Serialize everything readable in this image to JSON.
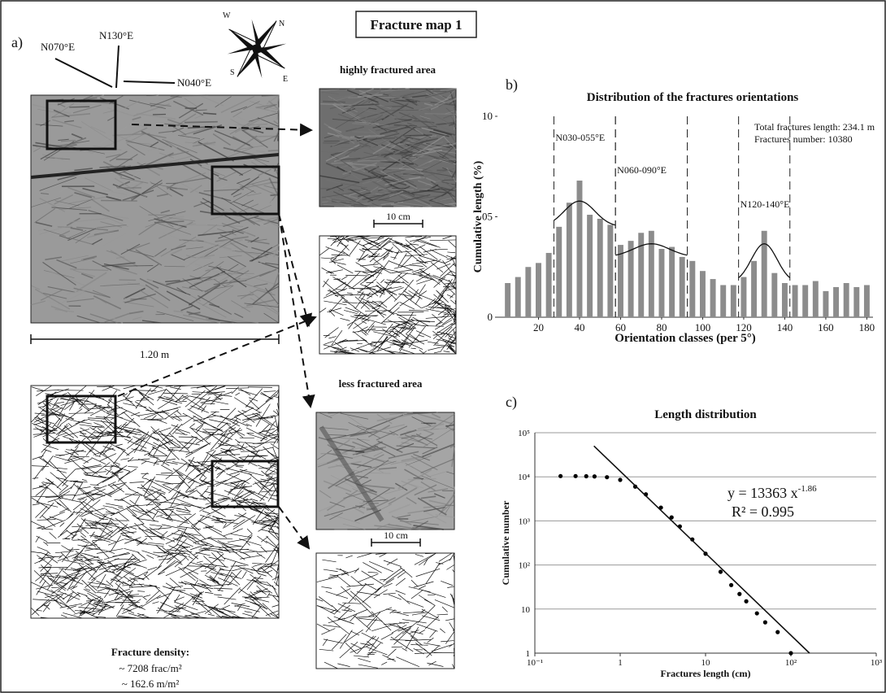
{
  "figure": {
    "title": "Fracture map 1",
    "panel_label": "a)",
    "orientations": [
      "N070°E",
      "N130°E",
      "N040°E"
    ],
    "compass": [
      "W",
      "N",
      "S",
      "E"
    ],
    "highly_fractured_area": "highly fractured area",
    "less_fractured_area": "less fractured area",
    "scale_photo": "1.20 m",
    "scale_zoom_1": "10 cm",
    "scale_zoom_2": "10 cm",
    "density_title": "Fracture density:",
    "density_count": "~ 7208 frac/m²",
    "density_length": "~ 162.6 m/m²"
  },
  "chart_data": [
    {
      "type": "bar",
      "panel_label": "b)",
      "title": "Distribution of the fractures orientations",
      "x_label": "Orientation classes (per 5°)",
      "y_label": "Cumulative length (%)",
      "x": [
        5,
        10,
        15,
        20,
        25,
        30,
        35,
        40,
        45,
        50,
        55,
        60,
        65,
        70,
        75,
        80,
        85,
        90,
        95,
        100,
        105,
        110,
        115,
        120,
        125,
        130,
        135,
        140,
        145,
        150,
        155,
        160,
        165,
        170,
        175,
        180
      ],
      "values": [
        1.7,
        2.0,
        2.5,
        2.7,
        3.2,
        4.5,
        5.7,
        6.8,
        5.1,
        4.9,
        4.6,
        3.6,
        3.8,
        4.2,
        4.3,
        3.4,
        3.5,
        3.0,
        2.8,
        2.3,
        1.9,
        1.6,
        1.6,
        2.0,
        2.8,
        4.3,
        2.2,
        1.7,
        1.6,
        1.6,
        1.8,
        1.3,
        1.5,
        1.7,
        1.5,
        1.6
      ],
      "color": "#8c8c8c",
      "xlim": [
        0,
        183
      ],
      "xticks": [
        20,
        40,
        60,
        80,
        100,
        120,
        140,
        160,
        180
      ],
      "ylim": [
        0,
        10
      ],
      "yticks": [
        0,
        {
          "value": 5,
          "label": "05"
        },
        10
      ],
      "zones": [
        {
          "label": "N030-055°E",
          "from": 27.5,
          "to": 57.5
        },
        {
          "label": "N060-090°E",
          "from": 57.5,
          "to": 92.5
        },
        {
          "label": "N120-140°E",
          "from": 117.5,
          "to": 142.5
        }
      ],
      "annotations": [
        "Total fractures length: 234.1 m",
        "Fractures number: 10380"
      ]
    },
    {
      "type": "scatter",
      "panel_label": "c)",
      "title": "Length distribution",
      "x_label": "Fractures length (cm)",
      "y_label": "Cumulative number",
      "x": [
        0.2,
        0.3,
        0.4,
        0.5,
        0.7,
        1,
        1.5,
        2,
        3,
        4,
        5,
        7,
        10,
        15,
        20,
        25,
        30,
        40,
        50,
        70,
        100
      ],
      "values": [
        10380,
        10380,
        10300,
        10200,
        9800,
        8500,
        6000,
        4000,
        2000,
        1200,
        750,
        380,
        180,
        70,
        35,
        22,
        15,
        8,
        5,
        3,
        1
      ],
      "color": "#000000",
      "log_scale": true,
      "grid": true,
      "xlim": [
        0.1,
        1000
      ],
      "ylim": [
        1,
        100000
      ],
      "xticks": [
        {
          "value": 0.1,
          "label": "10⁻¹"
        },
        1,
        10,
        {
          "value": 100,
          "label": "10²"
        },
        {
          "value": 1000,
          "label": "10³"
        }
      ],
      "yticks": [
        1,
        10,
        {
          "value": 100,
          "label": "10²"
        },
        {
          "value": 1000,
          "label": "10³"
        },
        {
          "value": 10000,
          "label": "10⁴"
        },
        {
          "value": 100000,
          "label": "10⁵"
        }
      ],
      "fit": {
        "coefficient": 13363,
        "exponent": -1.86,
        "label": "y = 13363 x",
        "exponent_label": "-1.86",
        "r2_label": "R² = 0.995"
      }
    }
  ]
}
